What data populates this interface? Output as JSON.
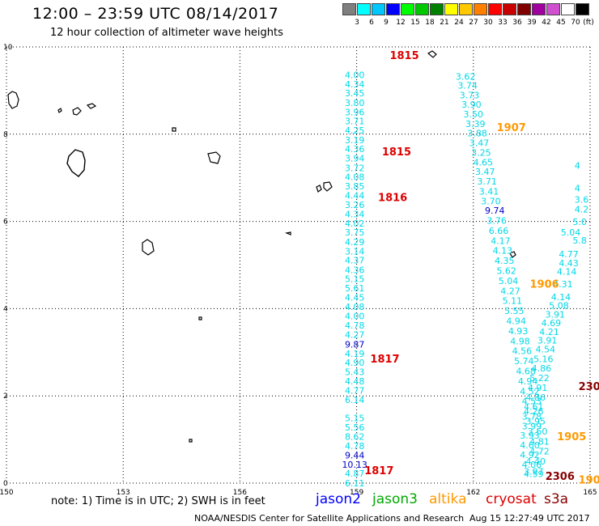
{
  "title": "12:00 – 23:59 UTC 08/14/2017",
  "subtitle": "12 hour collection of altimeter wave heights",
  "colorbar": {
    "colors": [
      "#7f7f7f",
      "#00ffff",
      "#00c8ff",
      "#0000ff",
      "#00ff00",
      "#00c800",
      "#008000",
      "#ffff00",
      "#ffc800",
      "#ff8000",
      "#ff0000",
      "#c80000",
      "#800000",
      "#a000a0",
      "#d050d0",
      "#ffffff",
      "#000000"
    ],
    "labels": [
      "3",
      "6",
      "9",
      "12",
      "15",
      "18",
      "21",
      "24",
      "27",
      "30",
      "33",
      "36",
      "39",
      "42",
      "45",
      "70",
      "(ft)"
    ]
  },
  "map": {
    "lon_ticks": [
      "150",
      "153",
      "156",
      "159",
      "162",
      "165"
    ],
    "lat_ticks": [
      "0",
      "2",
      "4",
      "6",
      "8",
      "10"
    ],
    "xlim": [
      150,
      165
    ],
    "ylim": [
      0,
      10
    ]
  },
  "chart_data": {
    "type": "scatter",
    "xlim": [
      150,
      165
    ],
    "ylim": [
      0,
      10
    ],
    "grid": true,
    "tracks": [
      {
        "name": "track-1",
        "points": [
          {
            "lon": 158.95,
            "lat": 0.0,
            "v": "6.11"
          },
          {
            "lon": 158.95,
            "lat": 0.22,
            "v": "4.87"
          },
          {
            "lon": 158.95,
            "lat": 0.43,
            "v": "10.13"
          },
          {
            "lon": 158.95,
            "lat": 0.64,
            "v": "9.44"
          },
          {
            "lon": 158.95,
            "lat": 0.85,
            "v": "4.78"
          },
          {
            "lon": 158.95,
            "lat": 1.07,
            "v": "8.62"
          },
          {
            "lon": 158.95,
            "lat": 1.28,
            "v": "5.56"
          },
          {
            "lon": 158.95,
            "lat": 1.49,
            "v": "5.15"
          },
          {
            "lon": 158.95,
            "lat": 1.91,
            "v": "6.14"
          },
          {
            "lon": 158.95,
            "lat": 2.12,
            "v": "4.77"
          },
          {
            "lon": 158.95,
            "lat": 2.34,
            "v": "4.48"
          },
          {
            "lon": 158.95,
            "lat": 2.55,
            "v": "5.43"
          },
          {
            "lon": 158.95,
            "lat": 2.76,
            "v": "4.90"
          },
          {
            "lon": 158.95,
            "lat": 2.97,
            "v": "4.19"
          },
          {
            "lon": 158.95,
            "lat": 3.18,
            "v": "9.87"
          },
          {
            "lon": 158.95,
            "lat": 3.4,
            "v": "4.27"
          },
          {
            "lon": 158.95,
            "lat": 3.62,
            "v": "4.78"
          },
          {
            "lon": 158.95,
            "lat": 3.83,
            "v": "4.00"
          },
          {
            "lon": 158.95,
            "lat": 4.04,
            "v": "4.08"
          },
          {
            "lon": 158.95,
            "lat": 4.26,
            "v": "4.45"
          },
          {
            "lon": 158.95,
            "lat": 4.47,
            "v": "5.61"
          },
          {
            "lon": 158.95,
            "lat": 4.68,
            "v": "5.15"
          },
          {
            "lon": 158.95,
            "lat": 4.89,
            "v": "4.36"
          },
          {
            "lon": 158.95,
            "lat": 5.11,
            "v": "4.37"
          },
          {
            "lon": 158.95,
            "lat": 5.32,
            "v": "3.14"
          },
          {
            "lon": 158.95,
            "lat": 5.53,
            "v": "4.29"
          },
          {
            "lon": 158.95,
            "lat": 5.75,
            "v": "3.75"
          },
          {
            "lon": 158.95,
            "lat": 5.96,
            "v": "4.02"
          },
          {
            "lon": 158.95,
            "lat": 6.17,
            "v": "4.34"
          },
          {
            "lon": 158.95,
            "lat": 6.38,
            "v": "3.26"
          },
          {
            "lon": 158.95,
            "lat": 6.6,
            "v": "4.44"
          },
          {
            "lon": 158.95,
            "lat": 6.81,
            "v": "3.85"
          },
          {
            "lon": 158.95,
            "lat": 7.02,
            "v": "4.08"
          },
          {
            "lon": 158.95,
            "lat": 7.23,
            "v": "3.72"
          },
          {
            "lon": 158.95,
            "lat": 7.45,
            "v": "3.94"
          },
          {
            "lon": 158.95,
            "lat": 7.66,
            "v": "4.36"
          },
          {
            "lon": 158.95,
            "lat": 7.87,
            "v": "3.19"
          },
          {
            "lon": 158.95,
            "lat": 8.09,
            "v": "4.25"
          },
          {
            "lon": 158.95,
            "lat": 8.3,
            "v": "3.71"
          },
          {
            "lon": 158.95,
            "lat": 8.51,
            "v": "3.96"
          },
          {
            "lon": 158.95,
            "lat": 8.72,
            "v": "3.80"
          },
          {
            "lon": 158.95,
            "lat": 8.94,
            "v": "3.45"
          },
          {
            "lon": 158.95,
            "lat": 9.15,
            "v": "4.34"
          },
          {
            "lon": 158.95,
            "lat": 9.36,
            "v": "4.00"
          }
        ]
      },
      {
        "name": "track-2",
        "points": [
          {
            "lon": 161.8,
            "lat": 9.32,
            "v": "3.62"
          },
          {
            "lon": 161.85,
            "lat": 9.12,
            "v": "3.74"
          },
          {
            "lon": 161.9,
            "lat": 8.9,
            "v": "3.73"
          },
          {
            "lon": 161.95,
            "lat": 8.68,
            "v": "3.90"
          },
          {
            "lon": 162.0,
            "lat": 8.46,
            "v": "3.50"
          },
          {
            "lon": 162.05,
            "lat": 8.24,
            "v": "3.39"
          },
          {
            "lon": 162.1,
            "lat": 8.02,
            "v": "3.88"
          },
          {
            "lon": 162.15,
            "lat": 7.8,
            "v": "3.47"
          },
          {
            "lon": 162.2,
            "lat": 7.58,
            "v": "3.25"
          },
          {
            "lon": 162.25,
            "lat": 7.36,
            "v": "4.65"
          },
          {
            "lon": 162.3,
            "lat": 7.14,
            "v": "3.47"
          },
          {
            "lon": 162.35,
            "lat": 6.92,
            "v": "3.71"
          },
          {
            "lon": 162.4,
            "lat": 6.69,
            "v": "3.41"
          },
          {
            "lon": 162.45,
            "lat": 6.47,
            "v": "3.70"
          },
          {
            "lon": 162.55,
            "lat": 6.25,
            "v": "9.74"
          },
          {
            "lon": 162.6,
            "lat": 6.02,
            "v": "3.76"
          },
          {
            "lon": 162.65,
            "lat": 5.79,
            "v": "6.66"
          },
          {
            "lon": 162.7,
            "lat": 5.56,
            "v": "4.17"
          },
          {
            "lon": 162.75,
            "lat": 5.33,
            "v": "4.13"
          },
          {
            "lon": 162.8,
            "lat": 5.1,
            "v": "4.35"
          },
          {
            "lon": 162.85,
            "lat": 4.87,
            "v": "5.62"
          },
          {
            "lon": 162.9,
            "lat": 4.64,
            "v": "5.04"
          },
          {
            "lon": 162.95,
            "lat": 4.41,
            "v": "4.27"
          },
          {
            "lon": 163.0,
            "lat": 4.18,
            "v": "5.11"
          },
          {
            "lon": 163.05,
            "lat": 3.95,
            "v": "5.55"
          },
          {
            "lon": 163.1,
            "lat": 3.72,
            "v": "4.94"
          },
          {
            "lon": 163.15,
            "lat": 3.49,
            "v": "4.93"
          },
          {
            "lon": 163.2,
            "lat": 3.26,
            "v": "4.98"
          },
          {
            "lon": 163.25,
            "lat": 3.03,
            "v": "4.56"
          },
          {
            "lon": 163.3,
            "lat": 2.8,
            "v": "5.74"
          },
          {
            "lon": 163.35,
            "lat": 2.57,
            "v": "4.68"
          },
          {
            "lon": 163.4,
            "lat": 2.34,
            "v": "4.94"
          },
          {
            "lon": 163.45,
            "lat": 2.11,
            "v": "4.52"
          },
          {
            "lon": 163.5,
            "lat": 1.88,
            "v": "4.53"
          },
          {
            "lon": 163.55,
            "lat": 1.65,
            "v": "4.26"
          },
          {
            "lon": 163.6,
            "lat": 1.42,
            "v": "3.95"
          },
          {
            "lon": 163.65,
            "lat": 1.19,
            "v": "3.60"
          },
          {
            "lon": 163.7,
            "lat": 0.96,
            "v": "4.81"
          },
          {
            "lon": 163.7,
            "lat": 0.73,
            "v": "4.72"
          },
          {
            "lon": 163.6,
            "lat": 0.5,
            "v": "4.40"
          },
          {
            "lon": 163.55,
            "lat": 0.27,
            "v": "3.97"
          }
        ]
      },
      {
        "name": "track-3",
        "points": [
          {
            "lon": 164.5,
            "lat": 5.75,
            "v": "5.04"
          },
          {
            "lon": 164.45,
            "lat": 5.25,
            "v": "4.77"
          },
          {
            "lon": 164.45,
            "lat": 5.05,
            "v": "4.43"
          },
          {
            "lon": 164.4,
            "lat": 4.85,
            "v": "4.14"
          },
          {
            "lon": 164.3,
            "lat": 4.56,
            "v": "4.31"
          },
          {
            "lon": 164.25,
            "lat": 4.27,
            "v": "4.14"
          },
          {
            "lon": 164.2,
            "lat": 4.07,
            "v": "5.08"
          },
          {
            "lon": 164.1,
            "lat": 3.87,
            "v": "3.91"
          },
          {
            "lon": 164.0,
            "lat": 3.67,
            "v": "4.69"
          },
          {
            "lon": 163.95,
            "lat": 3.47,
            "v": "4.21"
          },
          {
            "lon": 163.9,
            "lat": 3.27,
            "v": "3.91"
          },
          {
            "lon": 163.85,
            "lat": 3.07,
            "v": "4.54"
          },
          {
            "lon": 163.8,
            "lat": 2.85,
            "v": "5.16"
          },
          {
            "lon": 163.75,
            "lat": 2.63,
            "v": "4.86"
          },
          {
            "lon": 163.7,
            "lat": 2.41,
            "v": "5.22"
          },
          {
            "lon": 163.65,
            "lat": 2.19,
            "v": "4.91"
          },
          {
            "lon": 163.6,
            "lat": 1.97,
            "v": "4.86"
          },
          {
            "lon": 163.55,
            "lat": 1.75,
            "v": "4.61"
          },
          {
            "lon": 163.5,
            "lat": 1.53,
            "v": "3.78"
          },
          {
            "lon": 163.5,
            "lat": 1.31,
            "v": "3.99"
          },
          {
            "lon": 163.45,
            "lat": 1.09,
            "v": "3.93"
          },
          {
            "lon": 163.45,
            "lat": 0.87,
            "v": "4.60"
          },
          {
            "lon": 163.45,
            "lat": 0.65,
            "v": "4.92"
          },
          {
            "lon": 163.5,
            "lat": 0.43,
            "v": "4.06"
          },
          {
            "lon": 163.55,
            "lat": 0.21,
            "v": "4.59"
          }
        ]
      }
    ],
    "time_labels": [
      {
        "lon": 159.85,
        "lat": 9.81,
        "t": "1815",
        "sat": "cryosat"
      },
      {
        "lon": 159.65,
        "lat": 7.61,
        "t": "1815",
        "sat": "cryosat"
      },
      {
        "lon": 159.55,
        "lat": 6.56,
        "t": "1816",
        "sat": "cryosat"
      },
      {
        "lon": 159.35,
        "lat": 2.86,
        "t": "1817",
        "sat": "cryosat"
      },
      {
        "lon": 159.2,
        "lat": 0.3,
        "t": "1817",
        "sat": "cryosat"
      },
      {
        "lon": 162.6,
        "lat": 8.16,
        "t": "1907",
        "sat": "altika"
      },
      {
        "lon": 163.45,
        "lat": 4.57,
        "t": "1906",
        "sat": "altika"
      },
      {
        "lon": 164.15,
        "lat": 1.08,
        "t": "1905",
        "sat": "altika"
      },
      {
        "lon": 164.7,
        "lat": 0.08,
        "t": "190",
        "sat": "altika"
      },
      {
        "lon": 164.7,
        "lat": 2.23,
        "t": "230",
        "sat": "s3a"
      },
      {
        "lon": 163.85,
        "lat": 0.17,
        "t": "2306",
        "sat": "s3a"
      }
    ],
    "partial_values": [
      {
        "lon": 164.6,
        "lat": 7.28,
        "v": "4"
      },
      {
        "lon": 164.6,
        "lat": 6.76,
        "v": "4"
      },
      {
        "lon": 164.6,
        "lat": 6.5,
        "v": "3.6"
      },
      {
        "lon": 164.6,
        "lat": 6.28,
        "v": "4.2"
      },
      {
        "lon": 164.55,
        "lat": 5.99,
        "v": "5.0"
      },
      {
        "lon": 164.55,
        "lat": 5.57,
        "v": "5.8"
      }
    ]
  },
  "legend": [
    {
      "label": "jason2",
      "color": "#0000ff"
    },
    {
      "label": "jason3",
      "color": "#00aa00"
    },
    {
      "label": "altika",
      "color": "#ff9900"
    },
    {
      "label": "cryosat",
      "color": "#dd0000"
    },
    {
      "label": "s3a",
      "color": "#880000"
    }
  ],
  "note": "note: 1) Time is in UTC; 2) SWH is in feet",
  "footer": "NOAA/NESDIS Center for Satellite Applications and Research",
  "footer_timestamp": "Aug 15 12:27:49 UTC 2017"
}
